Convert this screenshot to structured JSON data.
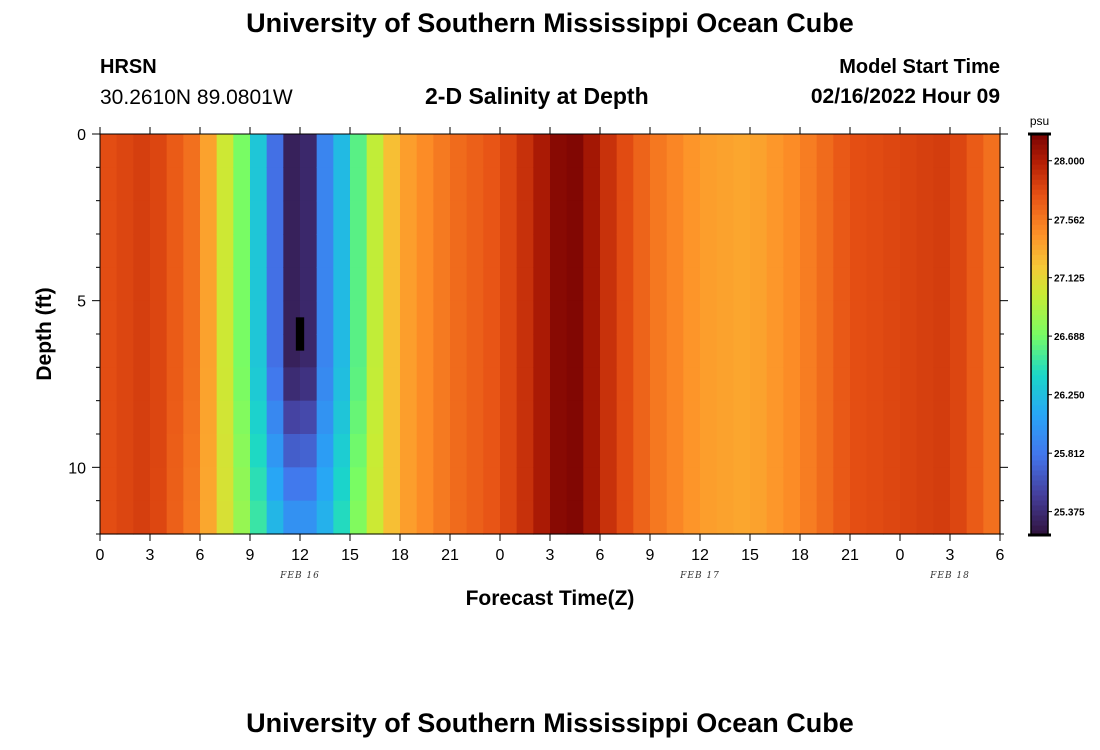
{
  "header": {
    "title": "University of Southern Mississippi Ocean Cube",
    "station": "HRSN",
    "coordinates": "30.2610N  89.0801W",
    "subtitle": "2-D Salinity at Depth",
    "model_start_label": "Model Start Time",
    "model_start_value": "02/16/2022 Hour 09"
  },
  "footer": {
    "title": "University of Southern Mississippi Ocean Cube"
  },
  "chart_data": {
    "type": "heatmap",
    "xlabel": "Forecast Time(Z)",
    "ylabel": "Depth (ft)",
    "x_tick_labels": [
      "0",
      "3",
      "6",
      "9",
      "12",
      "15",
      "18",
      "21",
      "0",
      "3",
      "6",
      "9",
      "12",
      "15",
      "18",
      "21",
      "0",
      "3",
      "6"
    ],
    "date_labels": [
      {
        "label": "FEB 16",
        "at_tick": 4
      },
      {
        "label": "FEB 17",
        "at_tick": 12
      },
      {
        "label": "FEB 18",
        "at_tick": 17
      }
    ],
    "y_ticks": [
      0,
      5,
      10
    ],
    "ylim": [
      0,
      12
    ],
    "colorbar": {
      "unit": "psu",
      "range": [
        25.2,
        28.2
      ],
      "tick_labels": [
        "28.000",
        "27.562",
        "27.125",
        "26.688",
        "26.250",
        "25.812",
        "25.375"
      ],
      "tick_values": [
        28.0,
        27.562,
        27.125,
        26.688,
        26.25,
        25.812,
        25.375
      ]
    },
    "salinity_profile_by_hour": {
      "hours": [
        0,
        3,
        6,
        7,
        8,
        9,
        10,
        11,
        11.5,
        12,
        12.5,
        13,
        14,
        15,
        16,
        17,
        18,
        21,
        24,
        26,
        27,
        28,
        29,
        30,
        33,
        36,
        39,
        42,
        45,
        48,
        51,
        54
      ],
      "surface_psu": [
        27.75,
        27.85,
        27.55,
        27.2,
        26.85,
        26.55,
        26.05,
        25.5,
        25.3,
        25.28,
        25.35,
        25.75,
        26.05,
        26.4,
        26.8,
        27.15,
        27.35,
        27.6,
        27.75,
        27.95,
        28.1,
        28.2,
        28.15,
        27.95,
        27.6,
        27.4,
        27.35,
        27.5,
        27.75,
        27.8,
        27.85,
        27.55
      ],
      "bottom_psu": [
        27.75,
        27.85,
        27.5,
        27.2,
        26.95,
        26.7,
        26.35,
        26.15,
        26.05,
        26.05,
        26.05,
        26.1,
        26.3,
        26.6,
        26.9,
        27.15,
        27.35,
        27.6,
        27.75,
        27.95,
        28.1,
        28.2,
        28.15,
        27.95,
        27.6,
        27.4,
        27.35,
        27.5,
        27.75,
        27.8,
        27.85,
        27.55
      ]
    },
    "min_anomaly": {
      "hour": 12,
      "depth_ft": [
        5.5,
        6.5
      ],
      "salinity_psu": 25.1
    },
    "grid": false
  }
}
